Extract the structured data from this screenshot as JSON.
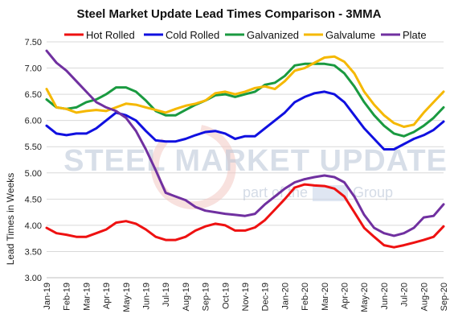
{
  "chart_data": {
    "type": "line",
    "title": "Steel Market Update Lead Times Comparison - 3MMA",
    "xlabel": "",
    "ylabel": "Lead Times in Weeks",
    "ylim": [
      3.0,
      7.5
    ],
    "yticks": [
      "3.00",
      "3.50",
      "4.00",
      "4.50",
      "5.00",
      "5.50",
      "6.00",
      "6.50",
      "7.00",
      "7.50"
    ],
    "grid": true,
    "legend_position": "top",
    "x": [
      "Jan-19",
      "",
      "Feb-19",
      "",
      "Mar-19",
      "",
      "Apr-19",
      "",
      "May-19",
      "",
      "Jun-19",
      "",
      "Jul-19",
      "",
      "Aug-19",
      "",
      "Sep-19",
      "",
      "Oct-19",
      "",
      "Nov-19",
      "",
      "Dec-19",
      "",
      "Jan-20",
      "",
      "Feb-20",
      "",
      "Mar-20",
      "",
      "Apr-20",
      "",
      "May-20",
      "",
      "Jun-20",
      "",
      "Jul-20",
      "",
      "Aug-20",
      "",
      "Sep-20"
    ],
    "xtick_labels": [
      "Jan-19",
      "Feb-19",
      "Mar-19",
      "Apr-19",
      "May-19",
      "Jun-19",
      "Jul-19",
      "Aug-19",
      "Sep-19",
      "Oct-19",
      "Nov-19",
      "Dec-19",
      "Jan-20",
      "Feb-20",
      "Mar-20",
      "Apr-20",
      "May-20",
      "Jun-20",
      "Jul-20",
      "Aug-20",
      "Sep-20"
    ],
    "series": [
      {
        "name": "Hot Rolled",
        "color": "#ee1111",
        "values": [
          3.95,
          3.85,
          3.82,
          3.78,
          3.78,
          3.85,
          3.92,
          4.05,
          4.08,
          4.03,
          3.92,
          3.78,
          3.72,
          3.72,
          3.78,
          3.9,
          3.98,
          4.03,
          4.0,
          3.9,
          3.9,
          3.96,
          4.1,
          4.3,
          4.5,
          4.72,
          4.78,
          4.76,
          4.75,
          4.7,
          4.55,
          4.25,
          3.95,
          3.78,
          3.62,
          3.58,
          3.62,
          3.67,
          3.72,
          3.78,
          3.98
        ]
      },
      {
        "name": "Cold Rolled",
        "color": "#1010e0",
        "values": [
          5.9,
          5.75,
          5.72,
          5.75,
          5.75,
          5.85,
          6.0,
          6.15,
          6.1,
          6.0,
          5.8,
          5.62,
          5.6,
          5.6,
          5.65,
          5.72,
          5.78,
          5.8,
          5.75,
          5.65,
          5.7,
          5.7,
          5.85,
          6.0,
          6.15,
          6.35,
          6.45,
          6.52,
          6.55,
          6.5,
          6.35,
          6.1,
          5.85,
          5.65,
          5.45,
          5.45,
          5.55,
          5.65,
          5.72,
          5.82,
          5.98
        ]
      },
      {
        "name": "Galvanized",
        "color": "#1a9a40",
        "values": [
          6.4,
          6.25,
          6.22,
          6.25,
          6.35,
          6.4,
          6.5,
          6.63,
          6.63,
          6.55,
          6.38,
          6.18,
          6.1,
          6.1,
          6.2,
          6.3,
          6.38,
          6.48,
          6.5,
          6.45,
          6.5,
          6.55,
          6.68,
          6.72,
          6.85,
          7.05,
          7.08,
          7.08,
          7.08,
          7.05,
          6.9,
          6.65,
          6.35,
          6.1,
          5.9,
          5.75,
          5.7,
          5.78,
          5.9,
          6.05,
          6.25
        ]
      },
      {
        "name": "Galvalume",
        "color": "#f5b800",
        "values": [
          6.6,
          6.25,
          6.22,
          6.15,
          6.18,
          6.2,
          6.18,
          6.25,
          6.32,
          6.3,
          6.25,
          6.2,
          6.15,
          6.22,
          6.28,
          6.32,
          6.38,
          6.52,
          6.55,
          6.5,
          6.55,
          6.62,
          6.65,
          6.6,
          6.75,
          6.95,
          7.0,
          7.1,
          7.2,
          7.22,
          7.12,
          6.9,
          6.55,
          6.3,
          6.1,
          5.95,
          5.88,
          5.92,
          6.15,
          6.35,
          6.55
        ]
      },
      {
        "name": "Plate",
        "color": "#7030a0",
        "values": [
          7.33,
          7.1,
          6.95,
          6.75,
          6.55,
          6.35,
          6.25,
          6.18,
          6.05,
          5.8,
          5.45,
          5.05,
          4.62,
          4.55,
          4.48,
          4.35,
          4.28,
          4.25,
          4.22,
          4.2,
          4.18,
          4.22,
          4.4,
          4.55,
          4.7,
          4.82,
          4.88,
          4.92,
          4.95,
          4.92,
          4.82,
          4.55,
          4.2,
          3.95,
          3.85,
          3.8,
          3.85,
          3.95,
          4.15,
          4.18,
          4.4
        ]
      }
    ]
  },
  "watermark": {
    "line1": "STEEL MARKET UPDATE",
    "line2a": "part of the",
    "line2b": "Group"
  }
}
